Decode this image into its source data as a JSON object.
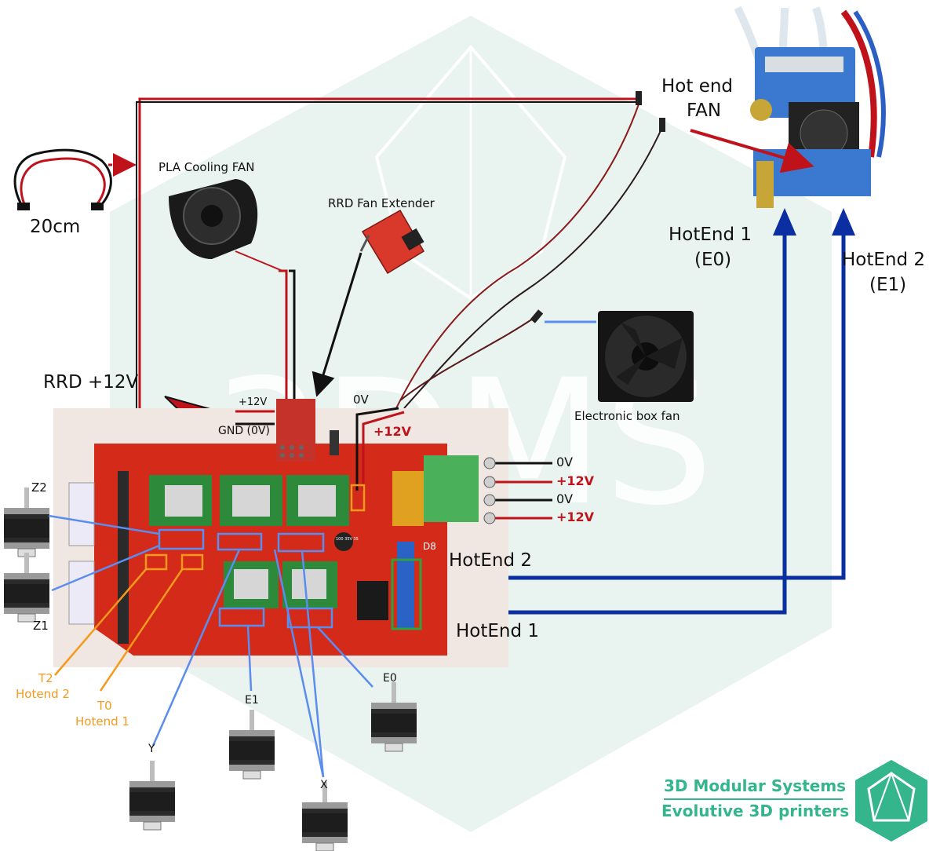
{
  "labels": {
    "twenty_cm": "20cm",
    "pla_fan": "PLA Cooling FAN",
    "rrd_fan_extender": "RRD Fan Extender",
    "hot_end_fan_l1": "Hot end",
    "hot_end_fan_l2": "FAN",
    "hotend1_e0_l1": "HotEnd 1",
    "hotend1_e0_l2": "(E0)",
    "hotend2_e1_l1": "HotEnd 2",
    "hotend2_e1_l2": "(E1)",
    "rrd_12v": "RRD +12V",
    "plus12v_small": "+12V",
    "gnd_0v": "GND (0V)",
    "zero_v_top": "0V",
    "plus12v_red": "+12V",
    "electronic_box_fan": "Electronic box fan",
    "psu_0v_1": "0V",
    "psu_12v_1": "+12V",
    "psu_0v_2": "0V",
    "psu_12v_2": "+12V",
    "hotend2_board": "HotEnd 2",
    "hotend1_board": "HotEnd 1",
    "z2": "Z2",
    "z1": "Z1",
    "t2": "T2",
    "t2_sub": "Hotend 2",
    "t0": "T0",
    "t0_sub": "Hotend 1",
    "y": "Y",
    "e1": "E1",
    "e0": "E0",
    "x": "X",
    "board_d8": "D8",
    "board_vol": "100 35V 35"
  },
  "brand": {
    "line1": "3D Modular Systems",
    "line2": "Evolutive 3D printers"
  },
  "colors": {
    "red_wire": "#c0121b",
    "black_wire": "#111111",
    "blue_arrow": "#0b2fa0",
    "light_blue": "#5b8def",
    "orange": "#f59a1c",
    "green": "#2ea13c",
    "brand": "#34b58c",
    "board_red": "#d32a1a",
    "watermark": "#e7f2ee"
  }
}
